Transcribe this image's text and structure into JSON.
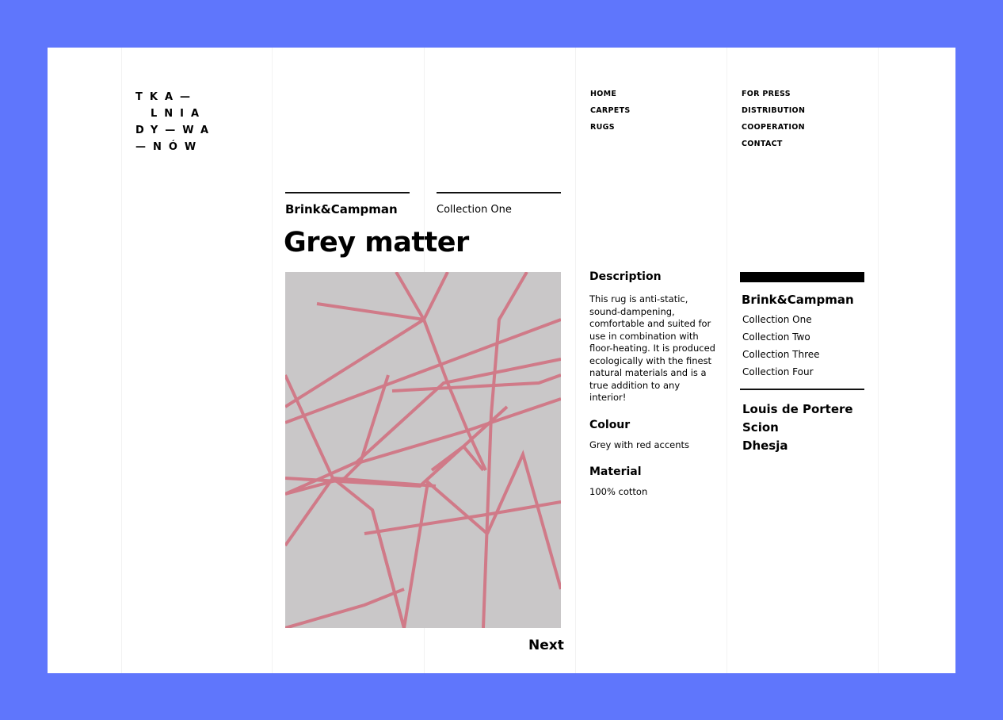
{
  "logo": {
    "lines": [
      "TKA—",
      "LNIA",
      "DY—WA",
      "—NÓW"
    ]
  },
  "nav": {
    "col1": [
      "HOME",
      "CARPETS",
      "RUGS"
    ],
    "col2": [
      "FOR PRESS",
      "DISTRIBUTION",
      "COOPERATION",
      "CONTACT"
    ]
  },
  "product": {
    "brand": "Brink&Campman",
    "collection": "Collection One",
    "title": "Grey matter",
    "next_label": "Next",
    "image_colors": {
      "base": "#c9c7c8",
      "lines": "#d07a88"
    }
  },
  "details": {
    "description_heading": "Description",
    "description": "This rug is anti-static, sound-dampening, comfortable and suited for use in combination with floor-heating. It is produced ecologically with the finest natural materials and is a true addition to any interior!",
    "colour_heading": "Colour",
    "colour": "Grey with red accents",
    "material_heading": "Material",
    "material": "100% cotton"
  },
  "sidebar": {
    "brand": "Brink&Campman",
    "collections": [
      "Collection One",
      "Collection Two",
      "Collection Three",
      "Collection Four"
    ],
    "other_brands": [
      "Louis de Portere",
      "Scion",
      "Dhesja"
    ]
  }
}
